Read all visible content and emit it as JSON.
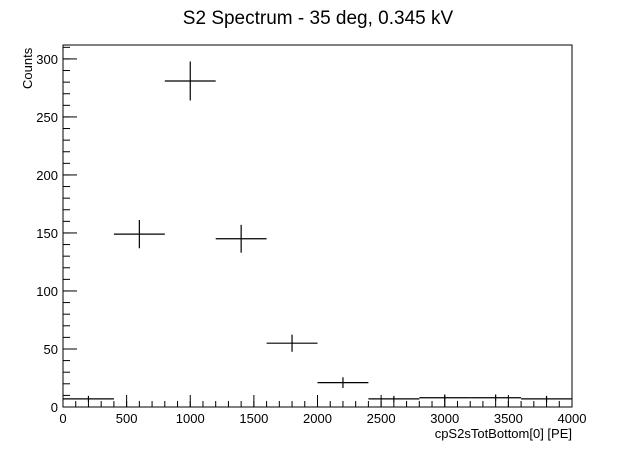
{
  "chart_data": {
    "type": "scatter",
    "title": "S2 Spectrum - 35 deg, 0.345 kV",
    "xlabel": "cpS2sTotBottom[0] [PE]",
    "ylabel": "Counts",
    "xlim": [
      0,
      4000
    ],
    "ylim": [
      0,
      312
    ],
    "x_ticks": [
      0,
      500,
      1000,
      1500,
      2000,
      2500,
      3000,
      3500,
      4000
    ],
    "y_ticks": [
      0,
      50,
      100,
      150,
      200,
      250,
      300
    ],
    "x_minor_step": 100,
    "y_minor_step": 10,
    "bin_width": 400,
    "grid": false,
    "series": [
      {
        "name": "data",
        "x": [
          200,
          600,
          1000,
          1400,
          1800,
          2200,
          2600,
          3000,
          3400,
          3800
        ],
        "y": [
          7,
          149,
          281,
          145,
          55,
          21,
          7,
          8,
          8,
          7
        ],
        "y_err": [
          2.6,
          12.2,
          16.8,
          12.0,
          7.4,
          4.6,
          2.6,
          2.8,
          2.8,
          2.6
        ]
      }
    ]
  }
}
